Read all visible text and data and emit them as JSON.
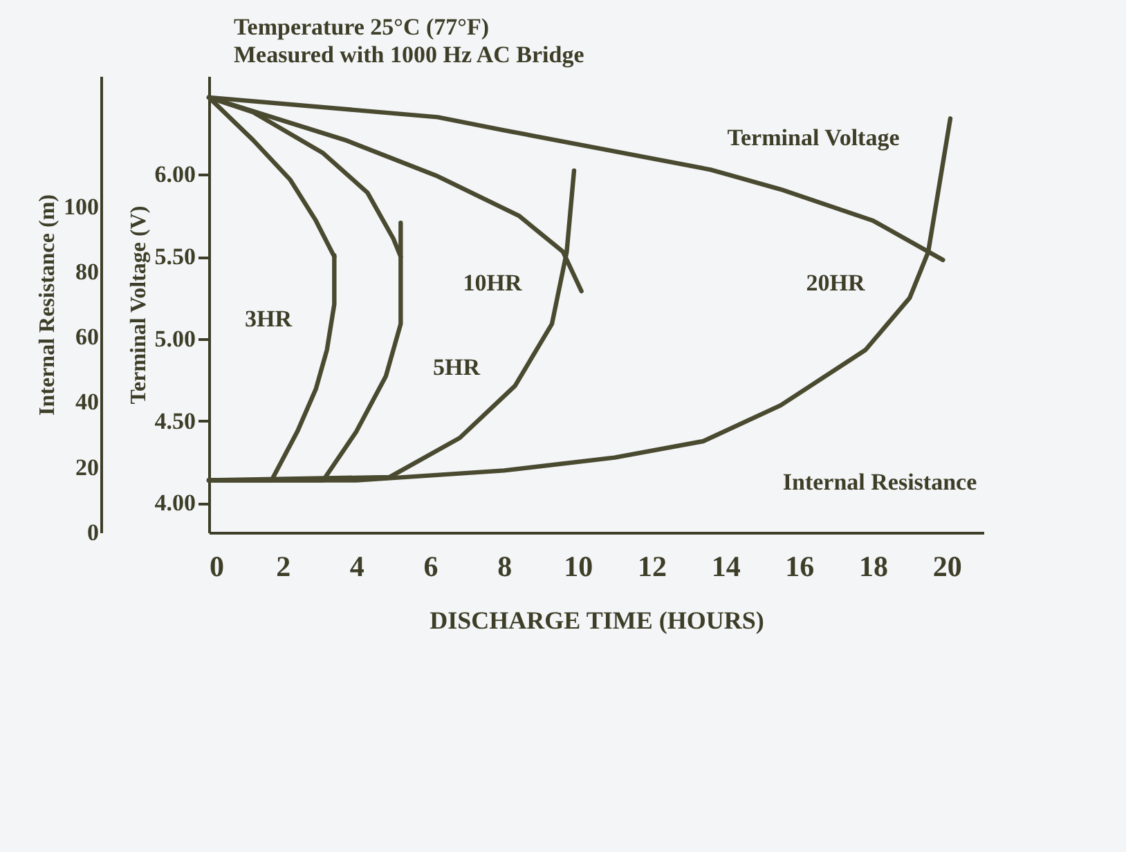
{
  "chart_data": {
    "type": "line",
    "title": "Temperature 25°C (77°F)",
    "subtitle": "Measured with 1000 Hz AC Bridge",
    "xlabel": "DISCHARGE TIME (HOURS)",
    "ylabel": "Terminal Voltage (V)",
    "y2label": "Internal Resistance (m)",
    "xlim": [
      0,
      21
    ],
    "xticks": [
      0,
      2,
      4,
      6,
      8,
      10,
      12,
      14,
      16,
      18,
      20
    ],
    "ylim": [
      3.82,
      6.6
    ],
    "yticks": [
      {
        "value": 4,
        "label": "4.00"
      },
      {
        "value": 4.5,
        "label": "4.50"
      },
      {
        "value": 5,
        "label": "5.00"
      },
      {
        "value": 5.5,
        "label": "5.50"
      },
      {
        "value": 6,
        "label": "6.00"
      }
    ],
    "y2lim": [
      0,
      140
    ],
    "y2ticks": [
      0,
      20,
      40,
      60,
      80,
      100
    ],
    "series": [
      {
        "color": "#4a4a30",
        "x": [
          0,
          1.2,
          2.2,
          2.9,
          3.4
        ],
        "values": [
          6.47,
          6.21,
          5.97,
          5.72,
          5.5
        ]
      },
      {
        "color": "#4a4a30",
        "x": [
          0,
          1.2,
          3.1,
          4.3,
          5.0,
          5.2
        ],
        "values": [
          6.47,
          6.38,
          6.13,
          5.89,
          5.61,
          5.5
        ]
      },
      {
        "color": "#4a4a30",
        "x": [
          0,
          3.7,
          6.2,
          8.4,
          9.6,
          10.1
        ],
        "values": [
          6.47,
          6.21,
          5.99,
          5.75,
          5.53,
          5.29
        ]
      },
      {
        "color": "#4a4a30",
        "x": [
          0,
          6.2,
          8.0,
          13.6,
          15.5,
          18.0,
          19.9
        ],
        "values": [
          6.47,
          6.35,
          6.27,
          6.03,
          5.91,
          5.72,
          5.48
        ]
      },
      {
        "color": "#4a4a30",
        "axis": "y2",
        "x": [
          0,
          1.7,
          2.4,
          2.9,
          3.2,
          3.4,
          3.4
        ],
        "values": [
          16,
          16,
          31,
          44,
          56,
          70,
          85
        ]
      },
      {
        "color": "#4a4a30",
        "axis": "y2",
        "x": [
          0,
          3.1,
          4.0,
          4.8,
          5.2,
          5.2,
          5.2
        ],
        "values": [
          16,
          16,
          31,
          48,
          64,
          86,
          95
        ]
      },
      {
        "color": "#4a4a30",
        "axis": "y2",
        "x": [
          0,
          4.9,
          6.8,
          8.3,
          9.3,
          9.7,
          9.9
        ],
        "values": [
          16,
          17,
          29,
          45,
          64,
          86,
          111
        ]
      },
      {
        "color": "#4a4a30",
        "axis": "y2",
        "x": [
          0,
          4,
          8,
          11,
          13.4,
          15.5,
          17.8,
          19,
          19.5,
          20.1
        ],
        "values": [
          16,
          16,
          19,
          23,
          28,
          39,
          56,
          72,
          86,
          127
        ]
      }
    ],
    "annotations": [
      "3HR",
      "5HR",
      "10HR",
      "20HR",
      "Terminal Voltage",
      "Internal Resistance"
    ]
  }
}
